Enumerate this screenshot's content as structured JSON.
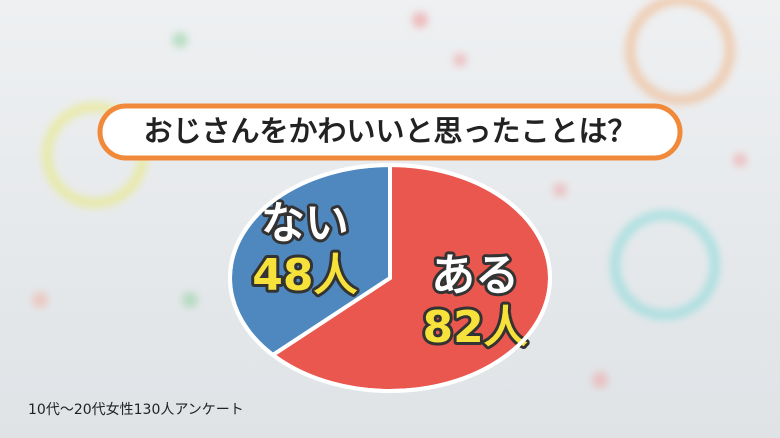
{
  "chart_data": {
    "type": "pie",
    "title": "おじさんをかわいいと思ったことは？",
    "categories": [
      "ある",
      "ない"
    ],
    "values": [
      82,
      48
    ],
    "value_labels": [
      "82人",
      "48人"
    ],
    "colors": [
      "#e9574e",
      "#4f88be"
    ],
    "note": "10代～20代女性130人アンケート"
  }
}
